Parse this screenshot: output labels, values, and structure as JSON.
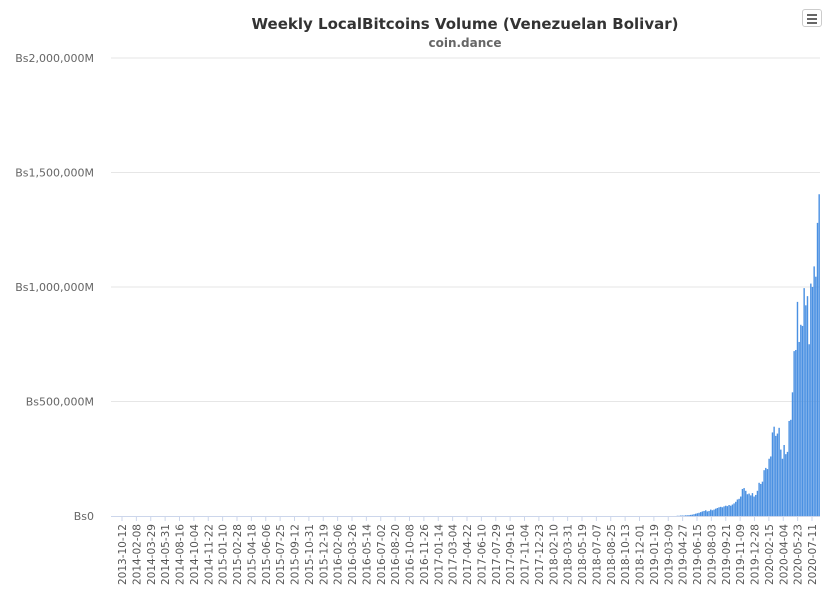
{
  "chart_data": {
    "type": "bar",
    "title": "Weekly LocalBitcoins Volume (Venezuelan Bolivar)",
    "subtitle": "coin.dance",
    "xlabel": "",
    "ylabel": "",
    "ylim": [
      0,
      2000000000
    ],
    "y_ticks": [
      {
        "value": 0,
        "label": "Bs0"
      },
      {
        "value": 500000000,
        "label": "Bs500,000M"
      },
      {
        "value": 1000000000,
        "label": "Bs1,000,000M"
      },
      {
        "value": 1500000000,
        "label": "Bs1,500,000M"
      },
      {
        "value": 2000000000,
        "label": "Bs2,000,000M"
      }
    ],
    "x_tick_labels": [
      "2013-10-12",
      "2014-02-08",
      "2014-03-29",
      "2014-05-31",
      "2014-08-16",
      "2014-10-04",
      "2014-11-22",
      "2015-01-10",
      "2015-02-28",
      "2015-04-18",
      "2015-06-06",
      "2015-07-25",
      "2015-09-12",
      "2015-10-31",
      "2015-12-19",
      "2016-02-06",
      "2016-03-26",
      "2016-05-14",
      "2016-07-02",
      "2016-08-20",
      "2016-10-08",
      "2016-11-26",
      "2017-01-14",
      "2017-03-04",
      "2017-04-22",
      "2017-06-10",
      "2017-07-29",
      "2017-09-16",
      "2017-11-04",
      "2017-12-23",
      "2018-02-10",
      "2018-03-31",
      "2018-05-19",
      "2018-07-07",
      "2018-08-25",
      "2018-10-13",
      "2018-12-01",
      "2019-01-19",
      "2019-03-09",
      "2019-04-27",
      "2019-06-15",
      "2019-08-03",
      "2019-09-21",
      "2019-11-09",
      "2019-12-28",
      "2020-02-15",
      "2020-04-04",
      "2020-05-23",
      "2020-07-11"
    ],
    "grid": true,
    "legend": "none",
    "bar_color": "#4a90e2",
    "series": [
      {
        "values": [
          0,
          0,
          0,
          0,
          0,
          0,
          0,
          0,
          0,
          0,
          0,
          0,
          0,
          0,
          0,
          0,
          0,
          0,
          0,
          0,
          0,
          0,
          0,
          0,
          0,
          0,
          0,
          0,
          0,
          0,
          0,
          0,
          0,
          0,
          0,
          0,
          0,
          0,
          0,
          0,
          0,
          0,
          0,
          0,
          0,
          0,
          0,
          0,
          0,
          0,
          0,
          0,
          0,
          0,
          0,
          0,
          0,
          0,
          0,
          0,
          0,
          0,
          0,
          0,
          0,
          0,
          0,
          0,
          0,
          0,
          0,
          0,
          0,
          0,
          0,
          0,
          0,
          0,
          0,
          0,
          0,
          0,
          0,
          0,
          0,
          0,
          0,
          0,
          0,
          0,
          0,
          0,
          0,
          0,
          0,
          0,
          0,
          0,
          0,
          0,
          0,
          0,
          0,
          0,
          0,
          0,
          0,
          0,
          0,
          0,
          0,
          0,
          0,
          0,
          0,
          0,
          0,
          0,
          0,
          0,
          0,
          0,
          0,
          0,
          0,
          0,
          0,
          0,
          0,
          0,
          0,
          0,
          0,
          0,
          0,
          0,
          0,
          0,
          0,
          0,
          0,
          0,
          0,
          0,
          0,
          0,
          0,
          0,
          0,
          0,
          0,
          0,
          0,
          0,
          0,
          0,
          0,
          0,
          0,
          0,
          0,
          0,
          0,
          0,
          0,
          0,
          0,
          0,
          0,
          0,
          0,
          0,
          0,
          0,
          0,
          0,
          0,
          0,
          0,
          0,
          0,
          0,
          0,
          0,
          0,
          0,
          0,
          0,
          0,
          0,
          0,
          0,
          0,
          0,
          0,
          0,
          0,
          0,
          0,
          0,
          0,
          0,
          0,
          0,
          0,
          0,
          0,
          0,
          0,
          0,
          0,
          0,
          0,
          0,
          0,
          0,
          0,
          0,
          0,
          0,
          0,
          0,
          0,
          0,
          0,
          0,
          0,
          0,
          0,
          0,
          0,
          0,
          0,
          0,
          0,
          0,
          0,
          0,
          0,
          0,
          0,
          0,
          0,
          0,
          0,
          0,
          0,
          0,
          0,
          0,
          0,
          0,
          0,
          0,
          0,
          0,
          0,
          0,
          0,
          0,
          0,
          0,
          0,
          0,
          0,
          0,
          0,
          0,
          0,
          0,
          0,
          0,
          0,
          0,
          0,
          0,
          0,
          0,
          0,
          0,
          0,
          0,
          0,
          0,
          0,
          0,
          0,
          0,
          0,
          0,
          0,
          0,
          0,
          0,
          0,
          0,
          0,
          0,
          0,
          0,
          0,
          0,
          0,
          0,
          0,
          0,
          0,
          0,
          0,
          0,
          0,
          0,
          0,
          0,
          0,
          0,
          0,
          0,
          0,
          0,
          0,
          0,
          0,
          0,
          0,
          0,
          0,
          0,
          0,
          0,
          0,
          0,
          0,
          0,
          0,
          0,
          0,
          0,
          0,
          1000000,
          1000000,
          2000000,
          2000000,
          2000000,
          3000000,
          3000000,
          4000000,
          5000000,
          6000000,
          8000000,
          10000000,
          12000000,
          14000000,
          17000000,
          20000000,
          22000000,
          25000000,
          20000000,
          22000000,
          28000000,
          25000000,
          28000000,
          32000000,
          35000000,
          38000000,
          40000000,
          38000000,
          42000000,
          45000000,
          43000000,
          48000000,
          45000000,
          50000000,
          55000000,
          62000000,
          72000000,
          75000000,
          85000000,
          118000000,
          122000000,
          110000000,
          95000000,
          98000000,
          90000000,
          100000000,
          85000000,
          92000000,
          110000000,
          145000000,
          140000000,
          150000000,
          200000000,
          210000000,
          205000000,
          250000000,
          260000000,
          365000000,
          390000000,
          350000000,
          360000000,
          385000000,
          290000000,
          250000000,
          310000000,
          270000000,
          280000000,
          415000000,
          420000000,
          540000000,
          720000000,
          725000000,
          935000000,
          760000000,
          835000000,
          830000000,
          995000000,
          920000000,
          960000000,
          750000000,
          1015000000,
          1000000000,
          1090000000,
          1045000000,
          1280000000,
          1405000000
        ]
      }
    ]
  },
  "menu": {
    "icon": "hamburger-menu-icon"
  }
}
